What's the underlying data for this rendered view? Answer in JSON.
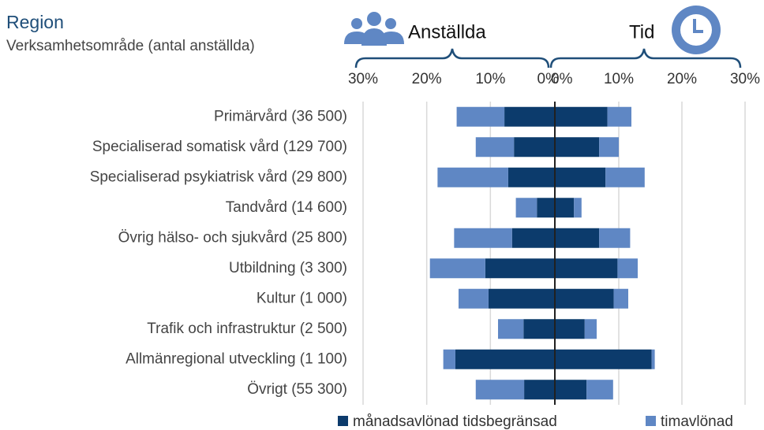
{
  "chart_data": {
    "type": "bar",
    "orientation": "horizontal",
    "stacked": true,
    "title": "Region",
    "subtitle": "Verksamhetsområde (antal anställda)",
    "categories": [
      "Primärvård (36 500)",
      "Specialiserad somatisk vård (129 700)",
      "Specialiserad psykiatrisk vård (29 800)",
      "Tandvård (14 600)",
      "Övrig hälso- och sjukvård (25 800)",
      "Utbildning (3 300)",
      "Kultur (1 000)",
      "Trafik och infrastruktur (2 500)",
      "Allmänregional utveckling (1 100)",
      "Övrigt (55 300)"
    ],
    "series": [
      {
        "name": "månadsavlönad tidsbegränsad",
        "color": "#0c3b6c"
      },
      {
        "name": "timavlönad",
        "color": "#5f87c4"
      }
    ],
    "grid": true,
    "panels": [
      {
        "title": "Anställda",
        "xlim": [
          30,
          0
        ],
        "xticks": [
          {
            "value": 30,
            "label": "30%"
          },
          {
            "value": 20,
            "label": "20%"
          },
          {
            "value": 10,
            "label": "10%"
          },
          {
            "value": 0,
            "label": "0%"
          }
        ],
        "series": [
          {
            "values": [
              7.8,
              6.3,
              7.2,
              2.7,
              6.6,
              10.8,
              10.3,
              4.8,
              15.5,
              4.7
            ]
          },
          {
            "values": [
              7.5,
              6.0,
              11.1,
              3.3,
              9.1,
              8.7,
              4.7,
              4.0,
              1.9,
              7.6
            ]
          }
        ]
      },
      {
        "title": "Tid",
        "xlim": [
          0,
          30
        ],
        "xticks": [
          {
            "value": 0,
            "label": "0%"
          },
          {
            "value": 10,
            "label": "10%"
          },
          {
            "value": 20,
            "label": "20%"
          },
          {
            "value": 30,
            "label": "30%"
          }
        ],
        "series": [
          {
            "values": [
              8.2,
              6.9,
              7.9,
              2.9,
              6.9,
              9.8,
              9.2,
              4.6,
              15.2,
              4.9
            ]
          },
          {
            "values": [
              3.8,
              3.1,
              6.2,
              1.2,
              4.9,
              3.2,
              2.3,
              1.9,
              0.5,
              4.2
            ]
          }
        ]
      }
    ]
  }
}
